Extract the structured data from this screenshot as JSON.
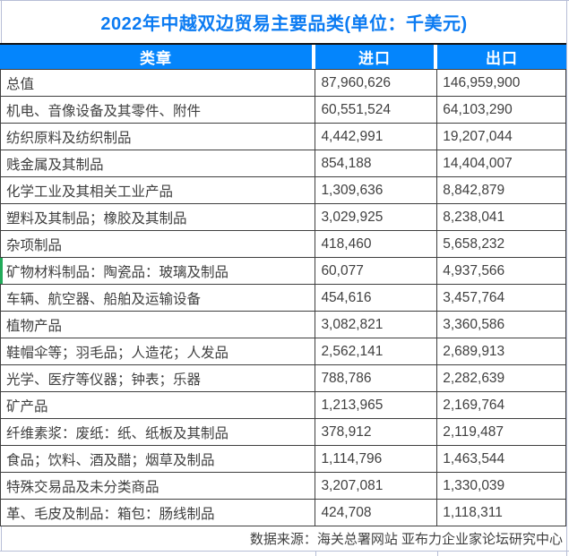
{
  "chart_data": {
    "type": "table",
    "title": "2022年中越双边贸易主要品类(单位：千美元)",
    "columns": [
      "类章",
      "进口",
      "出口"
    ],
    "rows": [
      [
        "总值",
        "87,960,626",
        "146,959,900"
      ],
      [
        "机电、音像设备及其零件、附件",
        "60,551,524",
        "64,103,290"
      ],
      [
        "纺织原料及纺织制品",
        "4,442,991",
        "19,207,044"
      ],
      [
        "贱金属及其制品",
        "854,188",
        "14,404,007"
      ],
      [
        "化学工业及其相关工业产品",
        "1,309,636",
        "8,842,879"
      ],
      [
        "塑料及其制品；橡胶及其制品",
        "3,029,925",
        "8,238,041"
      ],
      [
        "杂项制品",
        "418,460",
        "5,658,232"
      ],
      [
        "矿物材料制品：陶瓷品：玻璃及制品",
        "60,077",
        "4,937,566"
      ],
      [
        "车辆、航空器、船舶及运输设备",
        "454,616",
        "3,457,764"
      ],
      [
        "植物产品",
        "3,082,821",
        "3,360,586"
      ],
      [
        "鞋帽伞等；羽毛品；人造花；人发品",
        "2,562,141",
        "2,689,913"
      ],
      [
        "光学、医疗等仪器；钟表；乐器",
        "788,786",
        "2,282,639"
      ],
      [
        "矿产品",
        "1,213,965",
        "2,169,764"
      ],
      [
        "纤维素浆：废纸：纸、纸板及其制品",
        "378,912",
        "2,119,487"
      ],
      [
        "食品；饮料、酒及醋；烟草及制品",
        "1,114,796",
        "1,463,544"
      ],
      [
        "特殊交易品及未分类商品",
        "3,207,081",
        "1,330,039"
      ],
      [
        "革、毛皮及制品：箱包：肠线制品",
        "424,708",
        "1,118,311"
      ]
    ],
    "source": "数据来源：海关总署网站 亚布力企业家论坛研究中心",
    "legend_position": "none",
    "grid": "on"
  },
  "marker": {
    "row_index": 7,
    "color": "#22aa5a"
  },
  "colors": {
    "title_text": "#0b7bf2",
    "header_bg": "#0485fc",
    "header_text": "#ffffff",
    "body_text": "#3f3f3f",
    "border_dark": "#3f3f3f",
    "gridline_light": "#b7bed6",
    "background": "#ffffff"
  }
}
